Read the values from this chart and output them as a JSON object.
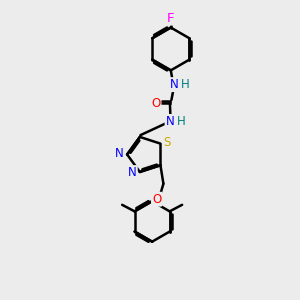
{
  "bg_color": "#ececec",
  "line_color": "#000000",
  "bond_width": 1.8,
  "atom_colors": {
    "F": "#ff00ff",
    "N": "#0000ff",
    "O": "#ff0000",
    "S": "#ccaa00",
    "H": "#008080",
    "C": "#000000"
  },
  "font_size": 8.5,
  "fig_size": [
    3.0,
    3.0
  ],
  "dpi": 100
}
